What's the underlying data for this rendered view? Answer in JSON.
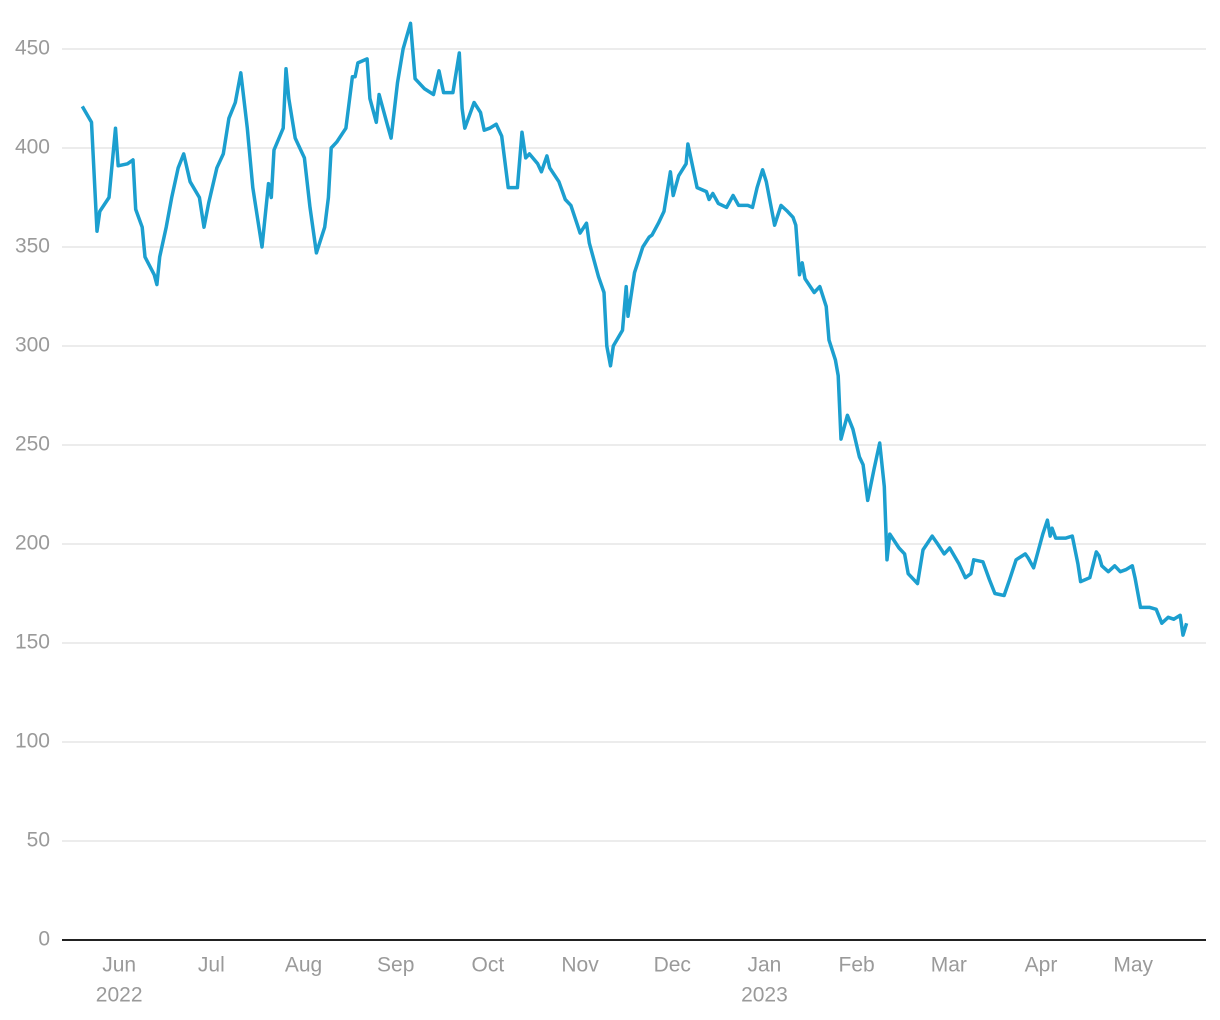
{
  "chart_data": {
    "type": "line",
    "x": [
      -0.4,
      -0.3,
      -0.24,
      -0.21,
      -0.11,
      -0.04,
      -0.01,
      0.09,
      0.15,
      0.18,
      0.25,
      0.28,
      0.38,
      0.41,
      0.44,
      0.51,
      0.57,
      0.64,
      0.7,
      0.77,
      0.87,
      0.92,
      0.97,
      1.06,
      1.13,
      1.19,
      1.26,
      1.32,
      1.39,
      1.45,
      1.55,
      1.62,
      1.65,
      1.68,
      1.78,
      1.81,
      1.84,
      1.91,
      2.01,
      2.07,
      2.14,
      2.23,
      2.27,
      2.3,
      2.36,
      2.46,
      2.53,
      2.56,
      2.59,
      2.69,
      2.72,
      2.79,
      2.82,
      2.92,
      2.95,
      3.02,
      3.08,
      3.16,
      3.21,
      3.31,
      3.41,
      3.47,
      3.52,
      3.62,
      3.69,
      3.72,
      3.75,
      3.85,
      3.92,
      3.96,
      4.02,
      4.09,
      4.15,
      4.22,
      4.32,
      4.37,
      4.41,
      4.45,
      4.54,
      4.58,
      4.64,
      4.67,
      4.77,
      4.84,
      4.9,
      5.0,
      5.07,
      5.1,
      5.2,
      5.26,
      5.29,
      5.33,
      5.36,
      5.46,
      5.5,
      5.52,
      5.59,
      5.68,
      5.75,
      5.78,
      5.85,
      5.91,
      5.98,
      6.01,
      6.07,
      6.15,
      6.17,
      6.27,
      6.37,
      6.4,
      6.44,
      6.5,
      6.59,
      6.66,
      6.72,
      6.82,
      6.87,
      6.92,
      6.98,
      7.02,
      7.11,
      7.18,
      7.25,
      7.31,
      7.34,
      7.38,
      7.41,
      7.44,
      7.54,
      7.6,
      7.67,
      7.7,
      7.77,
      7.8,
      7.83,
      7.9,
      7.96,
      8.03,
      8.07,
      8.12,
      8.19,
      8.25,
      8.3,
      8.33,
      8.36,
      8.46,
      8.52,
      8.56,
      8.66,
      8.72,
      8.82,
      8.88,
      8.95,
      9.01,
      9.11,
      9.18,
      9.24,
      9.27,
      9.37,
      9.44,
      9.5,
      9.6,
      9.66,
      9.73,
      9.83,
      9.86,
      9.92,
      10.02,
      10.07,
      10.1,
      10.12,
      10.16,
      10.27,
      10.34,
      10.4,
      10.43,
      10.53,
      10.6,
      10.63,
      10.66,
      10.73,
      10.8,
      10.86,
      10.92,
      10.99,
      11.02,
      11.08,
      11.18,
      11.25,
      11.31,
      11.38,
      11.44,
      11.51,
      11.54,
      11.58
    ],
    "series": [
      {
        "color": "#1c9fcf",
        "values": [
          421,
          413,
          358,
          368,
          375,
          410,
          391,
          392,
          394,
          369,
          360,
          345,
          336,
          331,
          345,
          360,
          375,
          390,
          397,
          383,
          375,
          360,
          372,
          390,
          397,
          415,
          423,
          438,
          410,
          380,
          350,
          382,
          375,
          399,
          410,
          440,
          425,
          405,
          395,
          370,
          347,
          360,
          375,
          400,
          403,
          410,
          436,
          436,
          443,
          445,
          425,
          413,
          427,
          410,
          405,
          433,
          450,
          463,
          435,
          430,
          427,
          439,
          428,
          428,
          448,
          420,
          410,
          423,
          418,
          409,
          410,
          412,
          406,
          380,
          380,
          408,
          395,
          397,
          392,
          388,
          396,
          390,
          383,
          374,
          371,
          357,
          362,
          352,
          335,
          327,
          300,
          290,
          300,
          308,
          330,
          315,
          337,
          350,
          355,
          356,
          362,
          368,
          388,
          376,
          386,
          392,
          402,
          380,
          378,
          374,
          377,
          372,
          370,
          376,
          371,
          371,
          370,
          380,
          389,
          383,
          361,
          371,
          368,
          365,
          361,
          336,
          342,
          334,
          327,
          330,
          320,
          303,
          293,
          285,
          253,
          265,
          258,
          244,
          240,
          222,
          238,
          251,
          229,
          192,
          205,
          198,
          195,
          185,
          180,
          197,
          204,
          200,
          195,
          198,
          190,
          183,
          185,
          192,
          191,
          182,
          175,
          174,
          182,
          192,
          195,
          193,
          188,
          205,
          212,
          204,
          208,
          203,
          203,
          204,
          190,
          181,
          183,
          196,
          194,
          189,
          186,
          189,
          186,
          187,
          189,
          183,
          168,
          168,
          167,
          160,
          163,
          162,
          164,
          154,
          160
        ]
      }
    ],
    "xlim": [
      -0.62,
      11.79
    ],
    "xticks": [
      {
        "value": 0,
        "label": "Jun"
      },
      {
        "value": 1,
        "label": "Jul"
      },
      {
        "value": 2,
        "label": "Aug"
      },
      {
        "value": 3,
        "label": "Sep"
      },
      {
        "value": 4,
        "label": "Oct"
      },
      {
        "value": 5,
        "label": "Nov"
      },
      {
        "value": 6,
        "label": "Dec"
      },
      {
        "value": 7,
        "label": "Jan"
      },
      {
        "value": 8,
        "label": "Feb"
      },
      {
        "value": 9,
        "label": "Mar"
      },
      {
        "value": 10,
        "label": "Apr"
      },
      {
        "value": 11,
        "label": "May"
      }
    ],
    "year_labels": [
      {
        "value": 0,
        "label": "2022"
      },
      {
        "value": 7,
        "label": "2023"
      }
    ],
    "ylim": [
      0,
      470
    ],
    "yticks": [
      0,
      50,
      100,
      150,
      200,
      250,
      300,
      350,
      400,
      450
    ],
    "grid": true
  }
}
